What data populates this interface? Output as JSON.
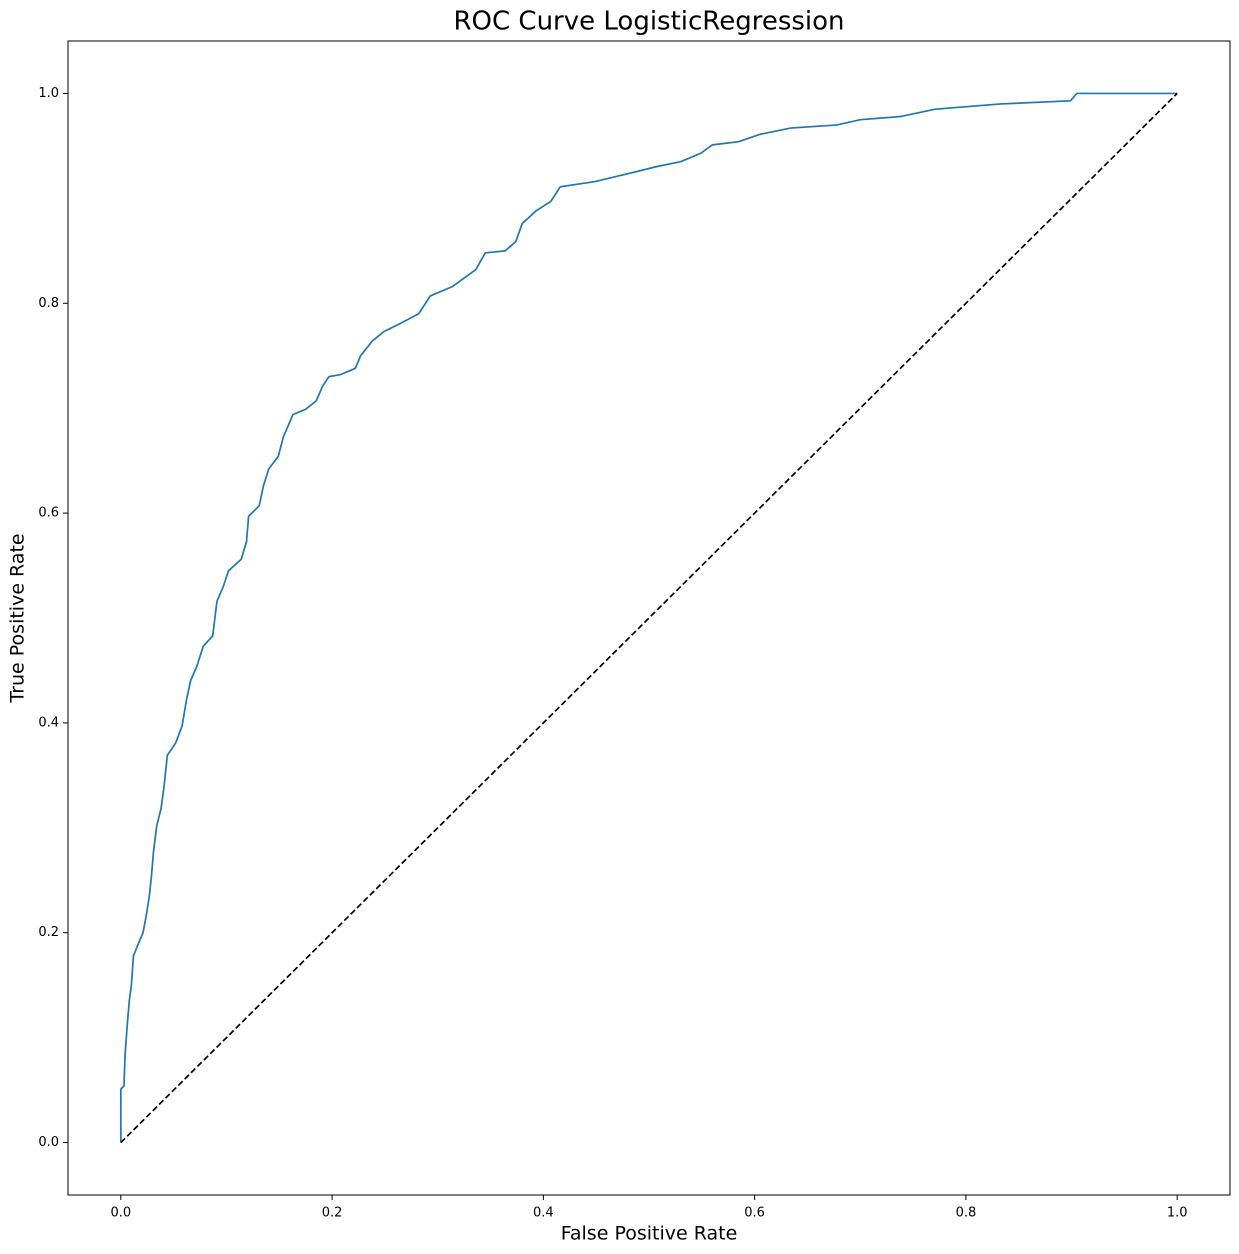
{
  "chart_data": {
    "type": "line",
    "title": "ROC Curve LogisticRegression",
    "x_label": "False Positive Rate",
    "y_label": "True Positive Rate",
    "xlim": [
      -0.05,
      1.05
    ],
    "ylim": [
      -0.05,
      1.05
    ],
    "xticks": [
      {
        "value": 0,
        "label": "0.0"
      },
      0.2,
      0.4,
      0.6,
      0.8,
      {
        "value": 1,
        "label": "1.0"
      }
    ],
    "yticks": [
      {
        "value": 0,
        "label": "0.0"
      },
      0.2,
      0.4,
      0.6,
      0.8,
      {
        "value": 1,
        "label": "1.0"
      }
    ],
    "grid": false,
    "series": [
      {
        "color": "#1f77b4",
        "dash": false,
        "x": [
          0,
          0,
          0.003,
          0.004,
          0.006,
          0.008,
          0.01,
          0.012,
          0.016,
          0.021,
          0.024,
          0.027,
          0.029,
          0.031,
          0.034,
          0.038,
          0.041,
          0.044,
          0.052,
          0.058,
          0.062,
          0.066,
          0.072,
          0.078,
          0.087,
          0.091,
          0.097,
          0.102,
          0.114,
          0.119,
          0.121,
          0.131,
          0.135,
          0.14,
          0.149,
          0.154,
          0.163,
          0.175,
          0.185,
          0.191,
          0.197,
          0.208,
          0.222,
          0.227,
          0.238,
          0.249,
          0.265,
          0.282,
          0.293,
          0.314,
          0.336,
          0.345,
          0.364,
          0.374,
          0.38,
          0.393,
          0.407,
          0.416,
          0.449,
          0.478,
          0.506,
          0.53,
          0.549,
          0.56,
          0.585,
          0.605,
          0.634,
          0.678,
          0.7,
          0.738,
          0.771,
          0.833,
          0.899,
          0.905,
          1
        ],
        "values": [
          0,
          0.051,
          0.054,
          0.083,
          0.111,
          0.135,
          0.15,
          0.178,
          0.188,
          0.2,
          0.216,
          0.235,
          0.254,
          0.278,
          0.302,
          0.318,
          0.34,
          0.369,
          0.381,
          0.397,
          0.421,
          0.44,
          0.454,
          0.473,
          0.483,
          0.516,
          0.53,
          0.545,
          0.556,
          0.573,
          0.597,
          0.607,
          0.626,
          0.642,
          0.654,
          0.673,
          0.694,
          0.699,
          0.707,
          0.721,
          0.73,
          0.732,
          0.738,
          0.75,
          0.764,
          0.773,
          0.781,
          0.79,
          0.807,
          0.816,
          0.832,
          0.848,
          0.85,
          0.859,
          0.876,
          0.888,
          0.897,
          0.911,
          0.916,
          0.923,
          0.93,
          0.935,
          0.943,
          0.951,
          0.954,
          0.961,
          0.967,
          0.97,
          0.975,
          0.978,
          0.985,
          0.99,
          0.993,
          1,
          1
        ]
      },
      {
        "color": "#000000",
        "dash": true,
        "x": [
          0,
          1
        ],
        "values": [
          0,
          1
        ]
      }
    ]
  }
}
